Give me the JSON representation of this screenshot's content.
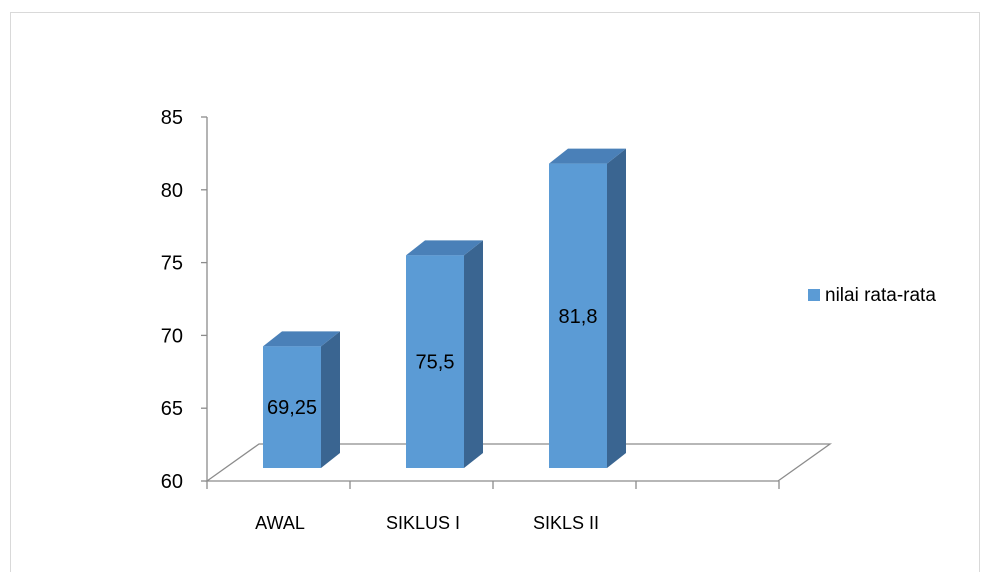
{
  "chart_data": {
    "type": "bar",
    "style": "3d-column",
    "categories": [
      "AWAL",
      "SIKLUS I",
      "SIKLS II"
    ],
    "series": [
      {
        "name": "nilai rata-rata",
        "values": [
          69.25,
          75.5,
          81.8
        ],
        "color": "#5b9bd5"
      }
    ],
    "data_labels": [
      "69,25",
      "75,5",
      "81,8"
    ],
    "y_ticks": [
      "60",
      "65",
      "70",
      "75",
      "80",
      "85"
    ],
    "ylim": [
      60,
      85
    ],
    "ystep": 5,
    "grid": false,
    "legend": "right",
    "colors": {
      "front": "#5b9bd5",
      "side": "#3a6591",
      "top": "#4a80b8",
      "axis": "#8c8c8c"
    }
  }
}
